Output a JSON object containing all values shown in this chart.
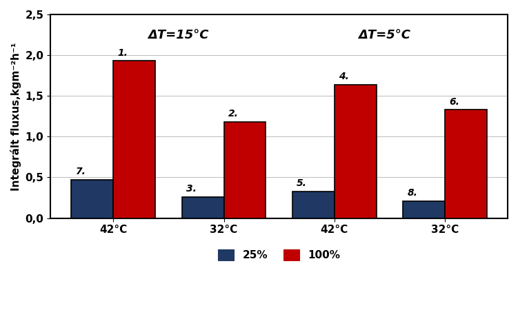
{
  "groups": [
    "42°C",
    "32°C",
    "42°C",
    "32°C"
  ],
  "values_25": [
    0.47,
    0.26,
    0.33,
    0.21
  ],
  "values_100": [
    1.93,
    1.18,
    1.64,
    1.33
  ],
  "labels_25": [
    "7.",
    "3.",
    "5.",
    "8."
  ],
  "labels_100": [
    "1.",
    "2.",
    "4.",
    "6."
  ],
  "color_25": "#1F3864",
  "color_100": "#C00000",
  "ylabel": "Integrált fluxus,kgm⁻²h⁻¹",
  "ylim": [
    0,
    2.5
  ],
  "yticks": [
    0.0,
    0.5,
    1.0,
    1.5,
    2.0,
    2.5
  ],
  "ytick_labels": [
    "0,0",
    "0,5",
    "1,0",
    "1,5",
    "2,0",
    "2,5"
  ],
  "legend_25": "25%",
  "legend_100": "100%",
  "annotation_left": "ΔT=15°C",
  "annotation_right": "ΔT=5°C",
  "bar_width": 0.38,
  "background_color": "#FFFFFF",
  "grid_color": "#BBBBBB",
  "label_fontsize": 10,
  "annotation_fontsize": 13,
  "axis_fontsize": 11,
  "ylabel_fontsize": 11
}
